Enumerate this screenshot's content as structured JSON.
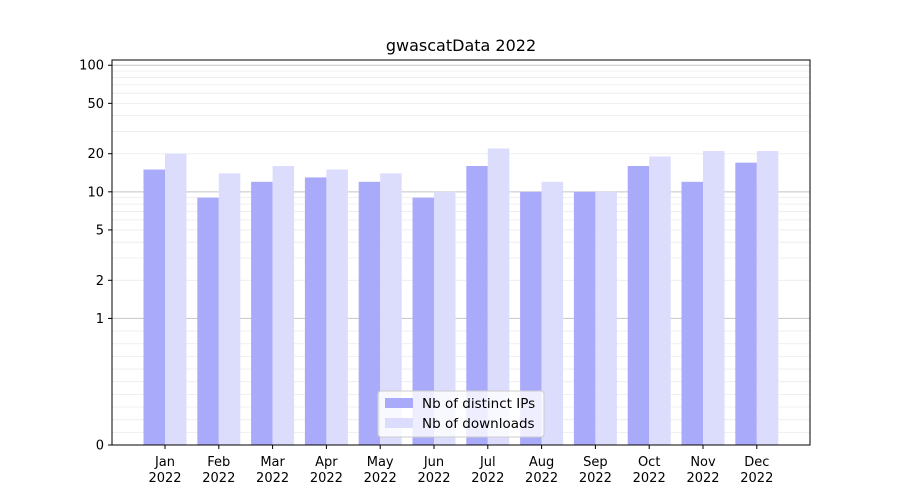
{
  "chart_data": {
    "type": "bar",
    "title": "gwascatData 2022",
    "xlabel": "",
    "ylabel": "",
    "y_scale": "symlog",
    "y_ticks": [
      0,
      1,
      2,
      5,
      10,
      20,
      50,
      100
    ],
    "y_tick_labels": [
      "0",
      "1",
      "2",
      "5",
      "10",
      "20",
      "50",
      "100"
    ],
    "ylim": [
      0,
      110
    ],
    "categories": [
      {
        "month": "Jan",
        "year": "2022"
      },
      {
        "month": "Feb",
        "year": "2022"
      },
      {
        "month": "Mar",
        "year": "2022"
      },
      {
        "month": "Apr",
        "year": "2022"
      },
      {
        "month": "May",
        "year": "2022"
      },
      {
        "month": "Jun",
        "year": "2022"
      },
      {
        "month": "Jul",
        "year": "2022"
      },
      {
        "month": "Aug",
        "year": "2022"
      },
      {
        "month": "Sep",
        "year": "2022"
      },
      {
        "month": "Oct",
        "year": "2022"
      },
      {
        "month": "Nov",
        "year": "2022"
      },
      {
        "month": "Dec",
        "year": "2022"
      }
    ],
    "series": [
      {
        "name": "Nb of distinct IPs",
        "color": "#aaaafb",
        "values": [
          15,
          9,
          12,
          13,
          12,
          9,
          16,
          10,
          10,
          16,
          12,
          17
        ]
      },
      {
        "name": "Nb of downloads",
        "color": "#dcdcfd",
        "values": [
          20,
          14,
          16,
          15,
          14,
          10,
          22,
          12,
          10,
          19,
          21,
          21
        ]
      }
    ],
    "grid": true,
    "legend_position": "bottom-center"
  }
}
